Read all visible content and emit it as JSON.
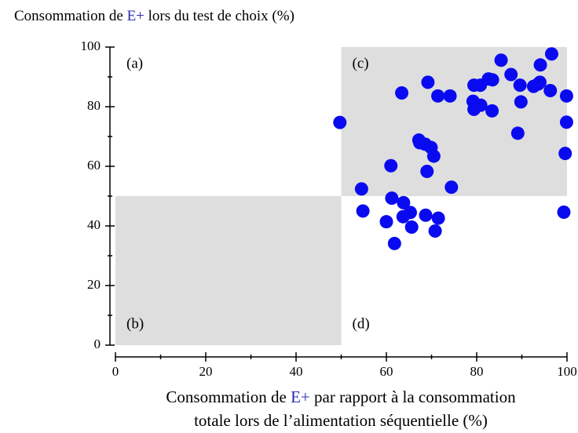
{
  "chart_data": {
    "type": "scatter",
    "ylabel": [
      "Consommation de ",
      "E+",
      " lors du test de choix (%)"
    ],
    "xlabel": [
      [
        "Consommation de ",
        "E+",
        " par rapport à la consommation"
      ],
      [
        "totale lors de l’alimentation séquentielle (%)"
      ]
    ],
    "xlim": [
      0,
      100
    ],
    "ylim": [
      0,
      100
    ],
    "xticks": [
      0,
      20,
      40,
      60,
      80,
      100
    ],
    "yticks": [
      0,
      20,
      40,
      60,
      80,
      100
    ],
    "xticks_minor": [
      10,
      30,
      50,
      70,
      90
    ],
    "yticks_minor": [
      10,
      30,
      50,
      70,
      90
    ],
    "color": "#0a0af0",
    "shade_color": "#dedede",
    "quadrants": [
      {
        "label": "(a)",
        "x": [
          0,
          50
        ],
        "y": [
          50,
          100
        ],
        "shaded": false
      },
      {
        "label": "(b)",
        "x": [
          0,
          50
        ],
        "y": [
          0,
          50
        ],
        "shaded": true
      },
      {
        "label": "(c)",
        "x": [
          50,
          100
        ],
        "y": [
          50,
          100
        ],
        "shaded": true
      },
      {
        "label": "(d)",
        "x": [
          50,
          100
        ],
        "y": [
          0,
          50
        ],
        "shaded": false
      }
    ],
    "x": [
      49.7,
      54.5,
      54.8,
      61,
      61.2,
      60,
      61.8,
      63.8,
      63.7,
      65.3,
      65.6,
      68.7,
      71.5,
      70.8,
      63.4,
      69.2,
      71.4,
      74.1,
      67.2,
      67.4,
      68.6,
      69.9,
      70.5,
      69,
      74.4,
      79.4,
      80.8,
      82.6,
      83.5,
      85.4,
      79.2,
      80.9,
      79.4,
      83.4,
      87.6,
      89.6,
      89.8,
      92.6,
      93.6,
      94,
      94.1,
      96.3,
      96.6,
      89.1,
      99.9,
      99.9,
      99.6,
      99.3
    ],
    "values": [
      74.7,
      52.4,
      45,
      60.2,
      49.3,
      41.4,
      34.1,
      47.8,
      43.1,
      44.5,
      39.6,
      43.6,
      42.6,
      38.3,
      84.6,
      88.2,
      83.6,
      83.6,
      68.8,
      67.9,
      67.4,
      66.3,
      63.4,
      58.3,
      53,
      87.2,
      87.2,
      89.3,
      89,
      95.6,
      81.8,
      80.5,
      79.1,
      78.6,
      90.8,
      87.2,
      81.6,
      86.8,
      87.6,
      88.2,
      94,
      85.4,
      97.7,
      71.1,
      83.6,
      74.8,
      64.3,
      44.6
    ]
  }
}
